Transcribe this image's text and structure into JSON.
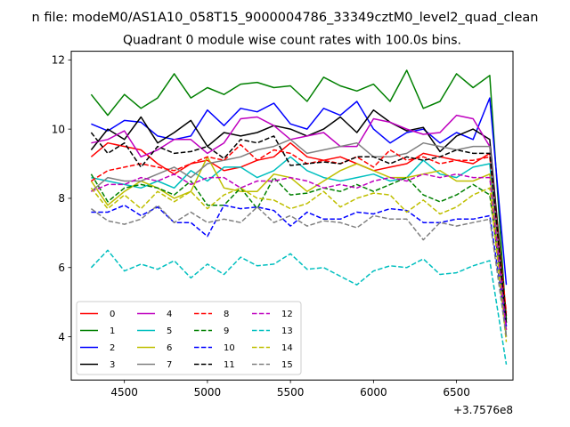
{
  "chart_data": {
    "type": "line",
    "suptitle": "n file: modeM0/AS1A10_058T15_9000004786_33349cztM0_level2_quad_clean",
    "title": "Quadrant 0 module wise count rates with 100.0s bins.",
    "xlabel": "",
    "ylabel": "",
    "x_offset_label": "+3.7576e8",
    "xlim": [
      4180,
      6840
    ],
    "ylim": [
      2.75,
      12.25
    ],
    "x_ticks": [
      4500,
      5000,
      5500,
      6000,
      6500
    ],
    "y_ticks": [
      4,
      6,
      8,
      10,
      12
    ],
    "grid": false,
    "legend_position": "lower-left",
    "x": [
      4300,
      4400,
      4500,
      4600,
      4700,
      4800,
      4900,
      5000,
      5100,
      5200,
      5300,
      5400,
      5500,
      5600,
      5700,
      5800,
      5900,
      6000,
      6100,
      6200,
      6300,
      6400,
      6500,
      6600,
      6700,
      6800
    ],
    "series": [
      {
        "name": "0",
        "color": "#ff0000",
        "dash": "solid",
        "values": [
          9.2,
          9.6,
          9.5,
          9.4,
          9.0,
          8.7,
          9.0,
          9.1,
          8.8,
          8.9,
          9.1,
          9.2,
          9.6,
          9.2,
          9.1,
          9.2,
          9.0,
          8.8,
          8.9,
          9.0,
          9.3,
          9.2,
          9.1,
          9.0,
          9.3,
          4.6
        ]
      },
      {
        "name": "1",
        "color": "#008000",
        "dash": "solid",
        "values": [
          11.0,
          10.4,
          11.0,
          10.6,
          10.9,
          11.6,
          10.9,
          11.2,
          11.0,
          11.3,
          11.35,
          11.2,
          11.25,
          10.8,
          11.5,
          11.25,
          11.1,
          11.3,
          10.8,
          11.7,
          10.6,
          10.8,
          11.6,
          11.2,
          11.55,
          4.4
        ]
      },
      {
        "name": "2",
        "color": "#0000ff",
        "dash": "solid",
        "values": [
          10.15,
          9.95,
          10.25,
          10.2,
          9.8,
          9.7,
          9.8,
          10.55,
          10.1,
          10.6,
          10.5,
          10.75,
          10.15,
          10.0,
          10.6,
          10.4,
          10.8,
          10.0,
          9.6,
          9.9,
          10.0,
          9.6,
          9.9,
          9.7,
          10.9,
          5.5
        ]
      },
      {
        "name": "3",
        "color": "#000000",
        "dash": "solid",
        "values": [
          9.4,
          10.0,
          9.7,
          10.35,
          9.6,
          9.9,
          10.25,
          9.5,
          9.9,
          9.8,
          9.9,
          10.1,
          10.0,
          9.8,
          10.0,
          10.35,
          9.9,
          10.55,
          10.2,
          9.95,
          10.05,
          9.35,
          9.8,
          10.0,
          9.7,
          4.5
        ]
      },
      {
        "name": "4",
        "color": "#bf00bf",
        "dash": "solid",
        "values": [
          9.6,
          9.7,
          9.95,
          9.2,
          9.4,
          9.7,
          9.7,
          9.3,
          9.6,
          10.3,
          10.35,
          10.1,
          9.7,
          9.8,
          9.9,
          9.5,
          9.5,
          10.3,
          10.2,
          10.0,
          9.85,
          9.9,
          10.4,
          10.3,
          9.5,
          4.3
        ]
      },
      {
        "name": "5",
        "color": "#00bfbf",
        "dash": "solid",
        "values": [
          8.6,
          8.5,
          8.4,
          8.3,
          8.5,
          8.3,
          8.8,
          8.5,
          8.9,
          8.9,
          8.6,
          8.8,
          9.2,
          8.8,
          8.6,
          8.5,
          8.6,
          8.7,
          8.5,
          8.6,
          9.1,
          8.7,
          8.6,
          8.9,
          9.0,
          4.0
        ]
      },
      {
        "name": "6",
        "color": "#bfbf00",
        "dash": "solid",
        "values": [
          8.5,
          7.8,
          8.2,
          8.5,
          8.3,
          8.0,
          8.2,
          9.2,
          8.3,
          8.2,
          8.2,
          8.7,
          8.6,
          8.2,
          8.5,
          8.8,
          9.0,
          8.8,
          8.6,
          8.6,
          8.7,
          8.8,
          8.5,
          8.5,
          8.7,
          4.2
        ]
      },
      {
        "name": "7",
        "color": "#808080",
        "dash": "solid",
        "values": [
          8.2,
          8.6,
          8.5,
          8.5,
          8.7,
          8.9,
          8.6,
          9.0,
          9.1,
          9.2,
          9.4,
          9.5,
          9.7,
          9.3,
          9.4,
          9.5,
          9.6,
          9.2,
          9.2,
          9.3,
          9.6,
          9.5,
          9.4,
          9.5,
          9.5,
          4.0
        ]
      },
      {
        "name": "8",
        "color": "#ff0000",
        "dash": "dashed",
        "values": [
          8.5,
          8.8,
          8.9,
          9.0,
          8.9,
          8.8,
          9.0,
          9.2,
          9.1,
          9.55,
          9.1,
          9.4,
          9.3,
          9.0,
          9.1,
          9.0,
          9.2,
          8.9,
          9.4,
          9.1,
          9.2,
          9.0,
          9.1,
          9.1,
          9.2,
          4.7
        ]
      },
      {
        "name": "9",
        "color": "#008000",
        "dash": "dashed",
        "values": [
          8.7,
          7.9,
          8.3,
          8.4,
          8.3,
          8.1,
          8.5,
          7.8,
          7.8,
          8.3,
          7.7,
          8.6,
          8.1,
          8.15,
          8.3,
          8.2,
          8.4,
          8.2,
          8.4,
          8.6,
          8.1,
          7.9,
          8.1,
          8.4,
          8.1,
          4.5
        ]
      },
      {
        "name": "10",
        "color": "#0000ff",
        "dash": "dashed",
        "values": [
          7.6,
          7.6,
          7.8,
          7.5,
          7.75,
          7.3,
          7.3,
          6.9,
          7.8,
          7.7,
          7.75,
          7.65,
          7.2,
          7.6,
          7.4,
          7.4,
          7.6,
          7.55,
          7.7,
          7.65,
          7.3,
          7.3,
          7.4,
          7.4,
          7.5,
          4.3
        ]
      },
      {
        "name": "11",
        "color": "#000000",
        "dash": "dashed",
        "values": [
          9.9,
          9.3,
          9.6,
          8.9,
          9.5,
          9.3,
          9.35,
          9.5,
          9.15,
          9.7,
          9.6,
          9.8,
          8.95,
          9.0,
          9.05,
          9.0,
          9.2,
          9.2,
          9.0,
          9.2,
          9.1,
          9.2,
          9.4,
          9.3,
          9.3,
          4.4
        ]
      },
      {
        "name": "12",
        "color": "#bf00bf",
        "dash": "dashed",
        "values": [
          8.2,
          8.4,
          8.4,
          8.6,
          8.5,
          8.7,
          8.4,
          8.6,
          8.6,
          8.3,
          8.5,
          8.5,
          8.6,
          8.5,
          8.3,
          8.4,
          8.3,
          8.5,
          8.6,
          8.5,
          8.7,
          8.6,
          8.7,
          8.6,
          8.6,
          4.2
        ]
      },
      {
        "name": "13",
        "color": "#00bfbf",
        "dash": "dashed",
        "values": [
          6.0,
          6.5,
          5.9,
          6.1,
          5.95,
          6.2,
          5.7,
          6.1,
          5.8,
          6.3,
          6.05,
          6.1,
          6.4,
          5.95,
          6.0,
          5.75,
          5.5,
          5.9,
          6.05,
          6.0,
          6.25,
          5.8,
          5.85,
          6.05,
          6.2,
          3.2
        ]
      },
      {
        "name": "14",
        "color": "#bfbf00",
        "dash": "dashed",
        "values": [
          8.3,
          7.7,
          8.1,
          7.7,
          8.2,
          7.9,
          8.2,
          7.7,
          8.1,
          8.3,
          8.0,
          7.95,
          7.7,
          7.85,
          8.2,
          7.75,
          8.0,
          8.15,
          8.1,
          7.6,
          7.95,
          7.55,
          7.75,
          8.1,
          8.3,
          3.85
        ]
      },
      {
        "name": "15",
        "color": "#808080",
        "dash": "dashed",
        "values": [
          7.7,
          7.35,
          7.25,
          7.4,
          7.8,
          7.3,
          7.6,
          7.3,
          7.4,
          7.3,
          7.75,
          7.3,
          7.5,
          7.2,
          7.35,
          7.3,
          7.15,
          7.5,
          7.4,
          7.4,
          6.8,
          7.3,
          7.2,
          7.3,
          7.4,
          4.0
        ]
      }
    ]
  }
}
